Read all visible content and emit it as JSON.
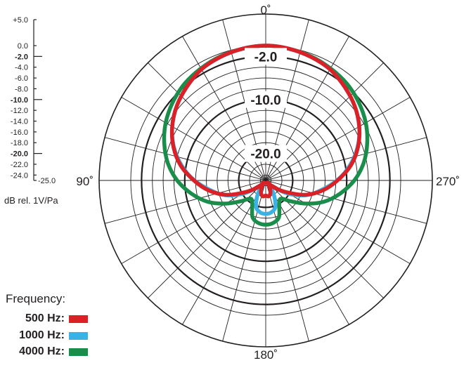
{
  "chart_data": {
    "type": "polar",
    "scale_min_db": -25.0,
    "scale_max_db": 0.0,
    "scale_labels": [
      "+5.0",
      "0.0",
      "-2.0",
      "-4.0",
      "-6.0",
      "-8.0",
      "-10.0",
      "-12.0",
      "-14.0",
      "-16.0",
      "-18.0",
      "-20.0",
      "-22.0",
      "-24.0",
      "-25.0"
    ],
    "scale_bold": [
      "-2.0",
      "-10.0",
      "-20.0"
    ],
    "ring_labels": [
      "-2.0",
      "-10.0",
      "-20.0"
    ],
    "angle_labels": {
      "top": "0˚",
      "left": "90˚",
      "right": "270˚",
      "bottom": "180˚"
    },
    "unit_label": "dB rel. 1V/Pa",
    "legend_title": "Frequency:",
    "series": [
      {
        "name": "500 Hz:",
        "color": "#d92127",
        "angles": [
          0,
          10,
          20,
          30,
          40,
          50,
          60,
          70,
          80,
          90,
          100,
          110,
          120,
          130,
          140,
          150,
          160,
          170,
          180
        ],
        "db": [
          0.0,
          -0.2,
          -0.6,
          -1.2,
          -2.3,
          -3.5,
          -5.0,
          -6.8,
          -9.0,
          -11.7,
          -14.3,
          -17.2,
          -20.7,
          -23.0,
          -24.5,
          -23.5,
          -22.5,
          -22.0,
          -22.2
        ]
      },
      {
        "name": "1000 Hz:",
        "color": "#3bb2e5",
        "angles": [
          0,
          10,
          20,
          30,
          40,
          50,
          60,
          70,
          80,
          90,
          100,
          110,
          120,
          130,
          140,
          150,
          160,
          170,
          180
        ],
        "db": [
          0.0,
          -0.2,
          -0.6,
          -1.2,
          -2.3,
          -3.5,
          -5.0,
          -6.9,
          -9.2,
          -11.8,
          -14.6,
          -17.0,
          -20.0,
          -22.8,
          -24.0,
          -22.0,
          -19.8,
          -19.0,
          -18.8
        ]
      },
      {
        "name": "4000 Hz:",
        "color": "#1b8d4b",
        "angles": [
          0,
          10,
          20,
          30,
          40,
          50,
          60,
          70,
          80,
          90,
          100,
          110,
          120,
          130,
          140,
          150,
          160,
          170,
          180
        ],
        "db": [
          0.0,
          -0.2,
          -0.5,
          -1.0,
          -1.6,
          -2.5,
          -3.6,
          -5.0,
          -6.6,
          -8.6,
          -11.0,
          -13.5,
          -16.4,
          -19.0,
          -20.6,
          -20.0,
          -17.8,
          -17.0,
          -16.8
        ]
      }
    ]
  }
}
